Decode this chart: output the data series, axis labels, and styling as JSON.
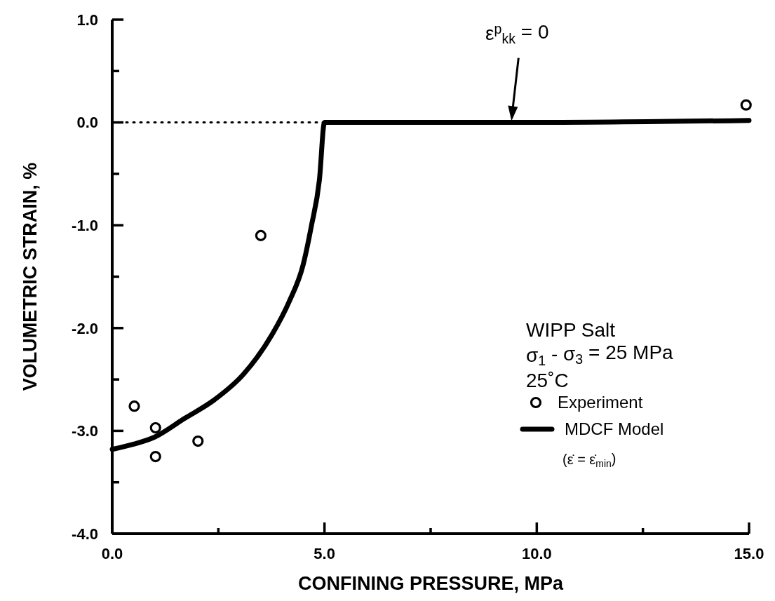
{
  "chart_data": {
    "type": "scatter",
    "xlabel": "CONFINING PRESSURE, MPa",
    "ylabel": "VOLUMETRIC STRAIN, %",
    "xlim": [
      0,
      15
    ],
    "ylim": [
      -4,
      1
    ],
    "xticks": [
      {
        "value": 0,
        "label": "0.0"
      },
      {
        "value": 2.5,
        "label": null
      },
      {
        "value": 5,
        "label": "5.0"
      },
      {
        "value": 7.5,
        "label": null
      },
      {
        "value": 10,
        "label": "10.0"
      },
      {
        "value": 12.5,
        "label": null
      },
      {
        "value": 15,
        "label": "15.0"
      }
    ],
    "yticks": [
      {
        "value": -4,
        "label": "-4.0"
      },
      {
        "value": -3.5,
        "label": null
      },
      {
        "value": -3,
        "label": "-3.0"
      },
      {
        "value": -2.5,
        "label": null
      },
      {
        "value": -2,
        "label": "-2.0"
      },
      {
        "value": -1.5,
        "label": null
      },
      {
        "value": -1,
        "label": "-1.0"
      },
      {
        "value": -0.5,
        "label": null
      },
      {
        "value": 0,
        "label": "0.0"
      },
      {
        "value": 0.5,
        "label": null
      },
      {
        "value": 1,
        "label": "1.0"
      }
    ],
    "series": [
      {
        "name": "Experiment",
        "color": "#000000",
        "marker": "circle",
        "x": [
          0.52,
          1.02,
          1.02,
          2.02,
          3.5,
          14.93
        ],
        "values": [
          -2.76,
          -2.97,
          -3.25,
          -3.1,
          -1.1,
          0.17
        ]
      },
      {
        "name": "MDCF Model",
        "type": "line",
        "color": "#000000",
        "marker": "none",
        "line_style": "solid",
        "x": [
          0,
          0.5,
          1.0,
          1.7,
          2.4,
          3.09,
          3.77,
          4.16,
          4.5,
          4.69,
          4.88,
          5.0,
          10,
          15
        ],
        "values": [
          -3.18,
          -3.13,
          -3.06,
          -2.88,
          -2.7,
          -2.45,
          -2.06,
          -1.75,
          -1.38,
          -1.01,
          -0.56,
          0,
          0,
          0.02
        ]
      }
    ],
    "ref_lines": [
      {
        "axis": "y",
        "value": 0,
        "line_style": "dotted",
        "color": "#000000"
      }
    ],
    "annotations": [
      "ε$^{p}$$_{kk}$ = 0",
      "WIPP Salt",
      "σ$_{1}$ - σ$_{3}$ = 25 MPa",
      "25˚C",
      "(ε̇ = ε̇$_{min}$)"
    ],
    "legend": "bottom right"
  }
}
